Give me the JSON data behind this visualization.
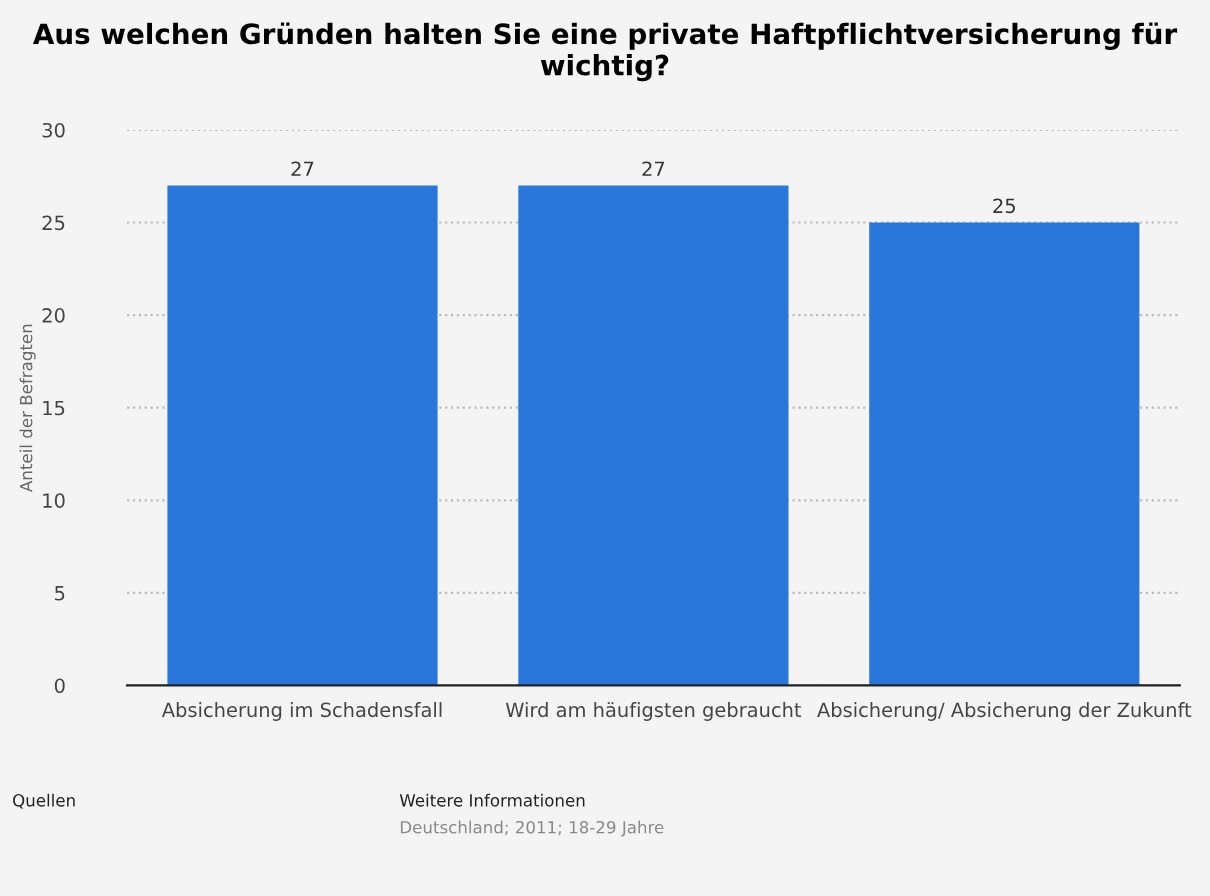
{
  "chart_data": {
    "type": "bar",
    "title": "Aus welchen Gründen halten Sie eine private Haftpflichtversicherung für wichtig?",
    "ylabel": "Anteil der Befragten",
    "categories": [
      "Absicherung im Schadensfall",
      "Wird am häufigsten gebraucht",
      "Absicherung/ Absicherung der Zukunft"
    ],
    "values": [
      27,
      27,
      25
    ],
    "color": "#2a77dc",
    "ylim": [
      0,
      30
    ],
    "yticks": [
      0,
      5,
      10,
      15,
      20,
      25,
      30
    ],
    "grid": "y",
    "data_labels": true,
    "annotations": [
      "Quellen",
      "Weitere Informationen",
      "Deutschland; 2011; 18-29 Jahre"
    ]
  }
}
